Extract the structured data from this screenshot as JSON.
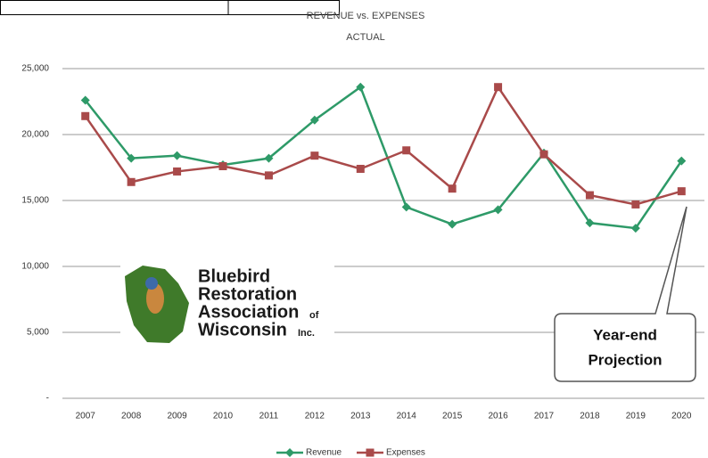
{
  "chart_data": {
    "type": "line",
    "title": "REVENUE vs. EXPENSES",
    "subtitle": "ACTUAL",
    "categories": [
      "2007",
      "2008",
      "2009",
      "2010",
      "2011",
      "2012",
      "2013",
      "2014",
      "2015",
      "2016",
      "2017",
      "2018",
      "2019",
      "2020"
    ],
    "series": [
      {
        "name": "Revenue",
        "color": "#2e9a68",
        "values": [
          22600,
          18200,
          18400,
          17700,
          18200,
          21100,
          23600,
          14500,
          13200,
          14300,
          18600,
          13300,
          12900,
          18000
        ]
      },
      {
        "name": "Expenses",
        "color": "#a94a4a",
        "values": [
          21400,
          16400,
          17200,
          17600,
          16900,
          18400,
          17400,
          18800,
          15900,
          23600,
          18500,
          15400,
          14700,
          15700
        ]
      }
    ],
    "ylim": [
      0,
      25000
    ],
    "yticks": [
      {
        "value": 0,
        "label": "-"
      },
      {
        "value": 5000,
        "label": "5,000"
      },
      {
        "value": 10000,
        "label": "10,000"
      },
      {
        "value": 15000,
        "label": "15,000"
      },
      {
        "value": 20000,
        "label": "20,000"
      },
      {
        "value": 25000,
        "label": "25,000"
      }
    ],
    "grid": true,
    "legend": "bottom",
    "logo": [
      "Bluebird",
      "Restoration",
      "Association",
      "of",
      "Wisconsin",
      "Inc."
    ],
    "annotation": [
      "Year-end",
      "Projection"
    ]
  }
}
